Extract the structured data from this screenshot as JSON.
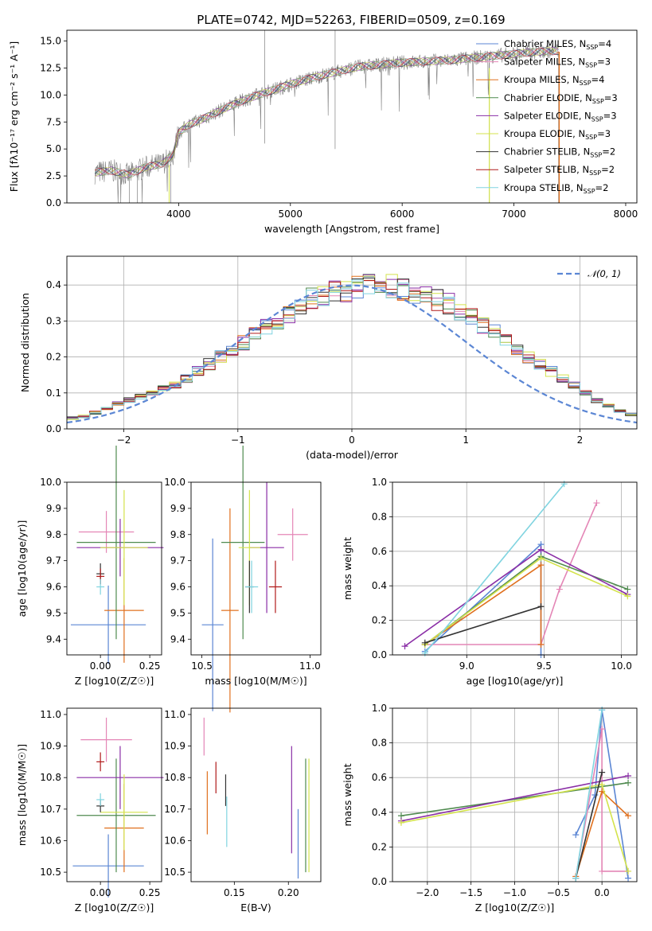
{
  "title": "PLATE=0742, MJD=52263, FIBERID=0509, z=0.169",
  "colors": {
    "chabrier_miles": "#5b86d4",
    "salpeter_miles": "#e486b6",
    "kroupa_miles": "#e0701e",
    "chabrier_elodie": "#4f8a4f",
    "salpeter_elodie": "#8a2ea6",
    "kroupa_elodie": "#d4e34c",
    "chabrier_stelib": "#333333",
    "salpeter_stelib": "#b01a1a",
    "kroupa_stelib": "#80d4e0",
    "data": "#808080"
  },
  "chart_data": [
    {
      "type": "line",
      "title": "PLATE=0742, MJD=52263, FIBERID=0509, z=0.169",
      "xlabel": "wavelength [Angstrom, rest frame]",
      "ylabel": "Flux [fλ10⁻¹⁷ erg cm⁻² s⁻¹ A⁻¹]",
      "xlim": [
        3000,
        8100
      ],
      "ylim": [
        0,
        16
      ],
      "xticks": [
        "4000",
        "5000",
        "6000",
        "7000",
        "8000"
      ],
      "yticks": [
        "0.0",
        "2.5",
        "5.0",
        "7.5",
        "10.0",
        "12.5",
        "15.0"
      ],
      "continuum": {
        "x": [
          3250,
          3400,
          3550,
          3700,
          3850,
          3950,
          4000,
          4100,
          4200,
          4400,
          4600,
          4800,
          5000,
          5200,
          5400,
          5600,
          5800,
          6000,
          6200,
          6400,
          6600,
          6800,
          7000,
          7200,
          7400
        ],
        "y": [
          2.8,
          3.0,
          2.6,
          3.3,
          3.6,
          4.5,
          6.5,
          7.3,
          7.7,
          8.7,
          9.6,
          10.3,
          11.0,
          11.6,
          12.1,
          12.6,
          12.8,
          13.0,
          13.1,
          13.2,
          13.4,
          13.6,
          13.8,
          14.0,
          14.1
        ]
      },
      "legend_placement": "upper right",
      "legend": [
        {
          "label": "Chabrier MILES, N",
          "sub": "SSP",
          "suffix": "=4",
          "key": "chabrier_miles"
        },
        {
          "label": "Salpeter MILES, N",
          "sub": "SSP",
          "suffix": "=3",
          "key": "salpeter_miles"
        },
        {
          "label": "Kroupa MILES, N",
          "sub": "SSP",
          "suffix": "=4",
          "key": "kroupa_miles"
        },
        {
          "label": "Chabrier ELODIE, N",
          "sub": "SSP",
          "suffix": "=3",
          "key": "chabrier_elodie"
        },
        {
          "label": "Salpeter ELODIE, N",
          "sub": "SSP",
          "suffix": "=3",
          "key": "salpeter_elodie"
        },
        {
          "label": "Kroupa ELODIE, N",
          "sub": "SSP",
          "suffix": "=3",
          "key": "kroupa_elodie"
        },
        {
          "label": "Chabrier STELIB, N",
          "sub": "SSP",
          "suffix": "=2",
          "key": "chabrier_stelib"
        },
        {
          "label": "Salpeter STELIB, N",
          "sub": "SSP",
          "suffix": "=2",
          "key": "salpeter_stelib"
        },
        {
          "label": "Kroupa STELIB, N",
          "sub": "SSP",
          "suffix": "=2",
          "key": "kroupa_stelib"
        }
      ]
    },
    {
      "type": "histogram",
      "xlabel": "(data-model)/error",
      "ylabel": "Normed distribution",
      "xlim": [
        -2.5,
        2.5
      ],
      "ylim": [
        0,
        0.48
      ],
      "xticks": [
        "−2",
        "−1",
        "0",
        "1",
        "2"
      ],
      "yticks": [
        "0.0",
        "0.1",
        "0.2",
        "0.3",
        "0.4"
      ],
      "grid": true,
      "legend_label": "𝒩(0, 1)",
      "legend_placement": "upper right",
      "bin_width": 0.1,
      "hist_values": [
        0.03,
        0.035,
        0.045,
        0.055,
        0.07,
        0.08,
        0.09,
        0.1,
        0.11,
        0.12,
        0.14,
        0.16,
        0.18,
        0.2,
        0.22,
        0.24,
        0.26,
        0.28,
        0.3,
        0.32,
        0.34,
        0.36,
        0.37,
        0.38,
        0.385,
        0.39,
        0.4,
        0.4,
        0.395,
        0.39,
        0.38,
        0.37,
        0.36,
        0.35,
        0.33,
        0.31,
        0.29,
        0.27,
        0.25,
        0.22,
        0.2,
        0.18,
        0.16,
        0.14,
        0.12,
        0.1,
        0.08,
        0.065,
        0.05,
        0.04
      ]
    },
    {
      "type": "errorbar",
      "xlabel": "Z [log10(Z/Z☉)]",
      "ylabel": "age [log10(age/yr)]",
      "xlim": [
        -0.17,
        0.31
      ],
      "ylim": [
        9.34,
        10.0
      ],
      "xticks": [
        "0.00",
        "0.25"
      ],
      "yticks": [
        "9.4",
        "9.5",
        "9.6",
        "9.7",
        "9.8",
        "9.9",
        "10.0"
      ],
      "points": [
        {
          "key": "chabrier_miles",
          "x": 0.04,
          "y": 9.455,
          "xerr": 0.19,
          "yerr": 0.15
        },
        {
          "key": "salpeter_miles",
          "x": 0.03,
          "y": 9.81,
          "xerr": 0.14,
          "yerr": 0.08
        },
        {
          "key": "kroupa_miles",
          "x": 0.12,
          "y": 9.51,
          "xerr": 0.1,
          "yerr": 0.2
        },
        {
          "key": "chabrier_elodie",
          "x": 0.08,
          "y": 9.77,
          "xerr": 0.2,
          "yerr": 0.37
        },
        {
          "key": "salpeter_elodie",
          "x": 0.1,
          "y": 9.75,
          "xerr": 0.22,
          "yerr": 0.11
        },
        {
          "key": "kroupa_elodie",
          "x": 0.12,
          "y": 9.75,
          "xerr": 0.12,
          "yerr": 0.22
        },
        {
          "key": "chabrier_stelib",
          "x": 0.0,
          "y": 9.65,
          "xerr": 0.02,
          "yerr": 0.04
        },
        {
          "key": "salpeter_stelib",
          "x": 0.0,
          "y": 9.64,
          "xerr": 0.02,
          "yerr": 0.03
        },
        {
          "key": "kroupa_stelib",
          "x": 0.0,
          "y": 9.6,
          "xerr": 0.02,
          "yerr": 0.03
        }
      ]
    },
    {
      "type": "errorbar",
      "xlabel": "mass [log10(M/M☉)]",
      "ylabel": "",
      "xlim": [
        10.45,
        11.05
      ],
      "ylim": [
        9.34,
        10.0
      ],
      "xticks": [
        "10.5",
        "11.0"
      ],
      "yticks": [
        "9.4",
        "9.5",
        "9.6",
        "9.7",
        "9.8",
        "9.9",
        "10.0"
      ],
      "points": [
        {
          "key": "chabrier_miles",
          "x": 10.55,
          "y": 9.455,
          "xerr": 0.05,
          "yerr": 0.33
        },
        {
          "key": "salpeter_miles",
          "x": 10.92,
          "y": 9.8,
          "xerr": 0.07,
          "yerr": 0.1
        },
        {
          "key": "kroupa_miles",
          "x": 10.63,
          "y": 9.51,
          "xerr": 0.04,
          "yerr": 0.39
        },
        {
          "key": "chabrier_elodie",
          "x": 10.69,
          "y": 9.77,
          "xerr": 0.1,
          "yerr": 0.37
        },
        {
          "key": "salpeter_elodie",
          "x": 10.8,
          "y": 9.75,
          "xerr": 0.08,
          "yerr": 0.25
        },
        {
          "key": "kroupa_elodie",
          "x": 10.72,
          "y": 9.75,
          "xerr": 0.05,
          "yerr": 0.22
        },
        {
          "key": "chabrier_stelib",
          "x": 10.72,
          "y": 9.6,
          "xerr": 0.02,
          "yerr": 0.1
        },
        {
          "key": "salpeter_stelib",
          "x": 10.84,
          "y": 9.6,
          "xerr": 0.03,
          "yerr": 0.1
        },
        {
          "key": "kroupa_stelib",
          "x": 10.73,
          "y": 9.6,
          "xerr": 0.03,
          "yerr": 0.1
        }
      ]
    },
    {
      "type": "line",
      "xlabel": "age  [log10(age/yr)]",
      "ylabel": "mass weight",
      "xlim": [
        8.52,
        10.1
      ],
      "ylim": [
        0.0,
        1.0
      ],
      "xticks": [
        "9.0",
        "9.5",
        "10.0"
      ],
      "yticks": [
        "0.0",
        "0.2",
        "0.4",
        "0.6",
        "0.8",
        "1.0"
      ],
      "grid": true,
      "series": [
        {
          "key": "chabrier_miles",
          "x": [
            8.73,
            9.48,
            9.48
          ],
          "y": [
            0.02,
            0.64,
            0.0
          ]
        },
        {
          "key": "salpeter_miles",
          "x": [
            8.73,
            9.48,
            9.6,
            9.84
          ],
          "y": [
            0.06,
            0.06,
            0.38,
            0.88
          ]
        },
        {
          "key": "kroupa_miles",
          "x": [
            8.73,
            9.48,
            9.48
          ],
          "y": [
            0.06,
            0.52,
            0.06
          ]
        },
        {
          "key": "chabrier_elodie",
          "x": [
            8.73,
            9.48,
            10.04
          ],
          "y": [
            0.06,
            0.57,
            0.38
          ]
        },
        {
          "key": "salpeter_elodie",
          "x": [
            8.6,
            9.48,
            10.04
          ],
          "y": [
            0.05,
            0.61,
            0.35
          ]
        },
        {
          "key": "kroupa_elodie",
          "x": [
            8.73,
            9.48,
            10.04
          ],
          "y": [
            0.06,
            0.56,
            0.34
          ]
        },
        {
          "key": "chabrier_stelib",
          "x": [
            8.73,
            9.48
          ],
          "y": [
            0.07,
            0.28
          ]
        },
        {
          "key": "kroupa_stelib",
          "x": [
            8.73,
            9.63
          ],
          "y": [
            0.01,
            0.99
          ]
        }
      ]
    },
    {
      "type": "errorbar",
      "xlabel": "Z [log10(Z/Z☉)]",
      "ylabel": "mass [log10(M/M☉)]",
      "xlim": [
        -0.17,
        0.31
      ],
      "ylim": [
        10.47,
        11.02
      ],
      "xticks": [
        "0.00",
        "0.25"
      ],
      "yticks": [
        "10.5",
        "10.6",
        "10.7",
        "10.8",
        "10.9",
        "11.0"
      ],
      "points": [
        {
          "key": "chabrier_miles",
          "x": 0.04,
          "y": 10.52,
          "xerr": 0.18,
          "yerr": 0.1
        },
        {
          "key": "salpeter_miles",
          "x": 0.03,
          "y": 10.92,
          "xerr": 0.13,
          "yerr": 0.07
        },
        {
          "key": "kroupa_miles",
          "x": 0.12,
          "y": 10.64,
          "xerr": 0.1,
          "yerr": 0.14
        },
        {
          "key": "chabrier_elodie",
          "x": 0.08,
          "y": 10.68,
          "xerr": 0.2,
          "yerr": 0.18
        },
        {
          "key": "salpeter_elodie",
          "x": 0.1,
          "y": 10.8,
          "xerr": 0.22,
          "yerr": 0.1
        },
        {
          "key": "kroupa_elodie",
          "x": 0.12,
          "y": 10.69,
          "xerr": 0.12,
          "yerr": 0.12
        },
        {
          "key": "chabrier_stelib",
          "x": 0.0,
          "y": 10.71,
          "xerr": 0.02,
          "yerr": 0.02
        },
        {
          "key": "salpeter_stelib",
          "x": 0.0,
          "y": 10.85,
          "xerr": 0.02,
          "yerr": 0.03
        },
        {
          "key": "kroupa_stelib",
          "x": 0.0,
          "y": 10.73,
          "xerr": 0.02,
          "yerr": 0.02
        }
      ]
    },
    {
      "type": "errorbar",
      "xlabel": "E(B-V)",
      "ylabel": "",
      "xlim": [
        0.11,
        0.23
      ],
      "ylim": [
        10.47,
        11.02
      ],
      "xticks": [
        "0.15",
        "0.20"
      ],
      "yticks": [
        "10.5",
        "10.6",
        "10.7",
        "10.8",
        "10.9",
        "11.0"
      ],
      "points": [
        {
          "key": "salpeter_miles",
          "x": 0.122,
          "y": 10.93,
          "yerr": 0.06
        },
        {
          "key": "kroupa_miles",
          "x": 0.125,
          "y": 10.72,
          "yerr": 0.1
        },
        {
          "key": "salpeter_stelib",
          "x": 0.133,
          "y": 10.8,
          "yerr": 0.05
        },
        {
          "key": "chabrier_stelib",
          "x": 0.142,
          "y": 10.76,
          "yerr": 0.05
        },
        {
          "key": "kroupa_stelib",
          "x": 0.143,
          "y": 10.66,
          "yerr": 0.08
        },
        {
          "key": "salpeter_elodie",
          "x": 0.203,
          "y": 10.73,
          "yerr": 0.17
        },
        {
          "key": "chabrier_miles",
          "x": 0.209,
          "y": 10.59,
          "yerr": 0.11
        },
        {
          "key": "chabrier_elodie",
          "x": 0.216,
          "y": 10.68,
          "yerr": 0.18
        },
        {
          "key": "kroupa_elodie",
          "x": 0.219,
          "y": 10.68,
          "yerr": 0.18
        }
      ]
    },
    {
      "type": "line",
      "xlabel": "Z [log10(Z/Z☉)]",
      "ylabel": "mass weight",
      "xlim": [
        -2.4,
        0.4
      ],
      "ylim": [
        0.0,
        1.0
      ],
      "xticks": [
        "−2.0",
        "−1.5",
        "−1.0",
        "−0.5",
        "0.0"
      ],
      "yticks": [
        "0.0",
        "0.2",
        "0.4",
        "0.6",
        "0.8",
        "1.0"
      ],
      "grid": true,
      "series": [
        {
          "key": "chabrier_miles",
          "x": [
            -0.3,
            -0.08,
            0.0,
            0.3
          ],
          "y": [
            0.27,
            0.5,
            0.99,
            0.02
          ]
        },
        {
          "key": "salpeter_miles",
          "x": [
            -0.3,
            0.0,
            0.0,
            0.3
          ],
          "y": [
            0.03,
            0.88,
            0.06,
            0.06
          ]
        },
        {
          "key": "kroupa_miles",
          "x": [
            -0.3,
            0.0,
            0.3
          ],
          "y": [
            0.03,
            0.52,
            0.38
          ]
        },
        {
          "key": "chabrier_elodie",
          "x": [
            -2.3,
            0.3
          ],
          "y": [
            0.38,
            0.57
          ]
        },
        {
          "key": "salpeter_elodie",
          "x": [
            -2.3,
            0.3
          ],
          "y": [
            0.35,
            0.61
          ]
        },
        {
          "key": "kroupa_elodie",
          "x": [
            -2.3,
            0.0,
            0.3
          ],
          "y": [
            0.34,
            0.56,
            0.06
          ]
        },
        {
          "key": "chabrier_stelib",
          "x": [
            -0.3,
            0.0
          ],
          "y": [
            0.02,
            0.63
          ]
        },
        {
          "key": "kroupa_stelib",
          "x": [
            -0.3,
            0.0
          ],
          "y": [
            0.02,
            0.99
          ]
        }
      ]
    }
  ]
}
